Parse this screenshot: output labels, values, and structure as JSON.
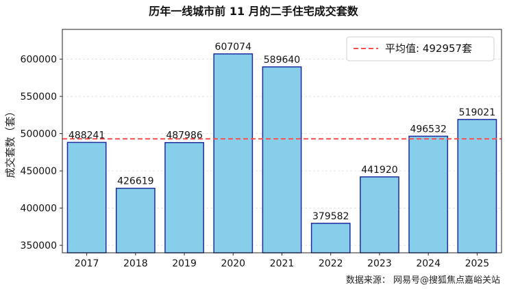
{
  "chart_data": {
    "type": "bar",
    "title": "历年一线城市前 11 月的二手住宅成交套数",
    "ylabel": "成交套数（套）",
    "xlabel": "",
    "categories": [
      "2017",
      "2018",
      "2019",
      "2020",
      "2021",
      "2022",
      "2023",
      "2024",
      "2025"
    ],
    "values": [
      488241,
      426619,
      487986,
      607074,
      589640,
      379582,
      441920,
      496532,
      519021
    ],
    "ylim": [
      340000,
      640000
    ],
    "yticks": [
      350000,
      400000,
      450000,
      500000,
      550000,
      600000
    ],
    "average": {
      "value": 492957,
      "label": "平均值: 492957套"
    },
    "bar_color": "#87ceeb",
    "bar_edge_color": "#1c2a9c",
    "avg_line_color": "#ff4d4d",
    "grid": "y-dashed",
    "legend_position": "top-right"
  },
  "source_note": "数据来源：  网易号@搜狐焦点嘉峪关站"
}
